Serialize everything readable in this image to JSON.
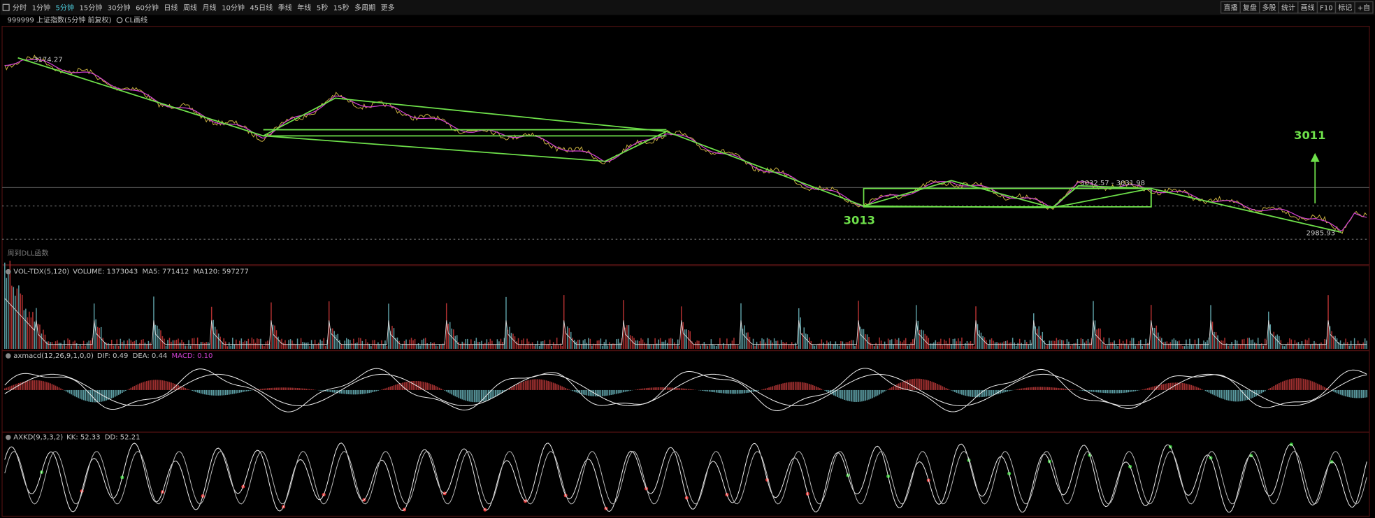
{
  "toolbar": {
    "left": [
      "分时",
      "1分钟",
      "5分钟",
      "15分钟",
      "30分钟",
      "60分钟",
      "日线",
      "周线",
      "月线",
      "10分钟",
      "45日线",
      "季线",
      "年线",
      "5秒",
      "15秒",
      "多周期",
      "更多"
    ],
    "active": "5分钟",
    "right": [
      "直播",
      "复盘",
      "多股",
      "统计",
      "画线",
      "F10",
      "标记",
      "+自"
    ]
  },
  "main": {
    "title": "999999 上证指数(5分钟 前复权)",
    "tool": "CL画线",
    "footer": "周到DLL函数",
    "annotations": {
      "high": "3174.27",
      "left_mark": "3013",
      "right_mark": "3011",
      "range": "3032.57 - 3031.98",
      "low": "2985.93"
    }
  },
  "panels": [
    {
      "name": "VOL-TDX(5,120)",
      "fields": [
        "VOLUME: 1373043",
        "MA5: 771412",
        "MA120: 597277"
      ]
    },
    {
      "name": "axmacd(12,26,9,1,0,0)",
      "fields": [
        "DIF: 0.49",
        "DEA: 0.44",
        "MACD: 0.10"
      ]
    },
    {
      "name": "AXKD(9,3,3,2)",
      "fields": [
        "KK: 52.33",
        "DD: 52.21"
      ]
    }
  ]
}
